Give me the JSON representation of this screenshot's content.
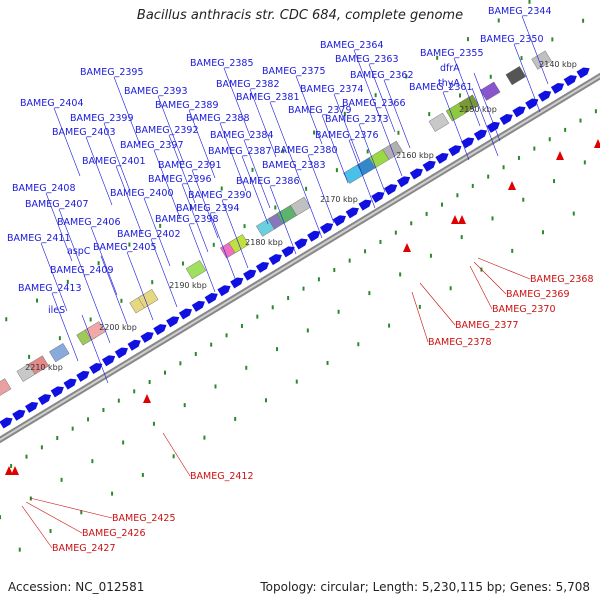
{
  "title": "Bacillus anthracis str. CDC 684, complete genome",
  "accession_text": "Accession: NC_012581",
  "summary_text": "Topology: circular; Length: 5,230,115 bp; Genes: 5,708",
  "colors": {
    "label_top": "#1a1adb",
    "label_bottom": "#cc1111",
    "arrow_forward": "#1010e0",
    "arrow_reverse": "#e00000",
    "tick": "#2a8a2a",
    "backbone": "#888888"
  },
  "scale_labels": [
    "2140 kbp",
    "2150 kbp",
    "2160 kbp",
    "2170 kbp",
    "2180 kbp",
    "2190 kbp",
    "2200 kbp",
    "2210 kbp"
  ],
  "top_labels": [
    "BAMEG_2344",
    "BAMEG_2350",
    "BAMEG_2355",
    "dfrA",
    "thyA",
    "BAMEG_2361",
    "BAMEG_2362",
    "BAMEG_2363",
    "BAMEG_2364",
    "BAMEG_2366",
    "BAMEG_2373",
    "BAMEG_2374",
    "BAMEG_2375",
    "BAMEG_2376",
    "BAMEG_2379",
    "BAMEG_2380",
    "BAMEG_2381",
    "BAMEG_2382",
    "BAMEG_2383",
    "BAMEG_2384",
    "BAMEG_2385",
    "BAMEG_2386",
    "BAMEG_2387",
    "BAMEG_2388",
    "BAMEG_2389",
    "BAMEG_2390",
    "BAMEG_2391",
    "BAMEG_2392",
    "BAMEG_2393",
    "BAMEG_2394",
    "BAMEG_2395",
    "BAMEG_2396",
    "BAMEG_2397",
    "BAMEG_2398",
    "BAMEG_2399",
    "BAMEG_2400",
    "BAMEG_2401",
    "BAMEG_2402",
    "BAMEG_2403",
    "BAMEG_2404",
    "BAMEG_2405",
    "BAMEG_2406",
    "BAMEG_2407",
    "BAMEG_2408",
    "aspC",
    "BAMEG_2409",
    "BAMEG_2411",
    "BAMEG_2413",
    "ileS"
  ],
  "bottom_labels": [
    "BAMEG_2368",
    "BAMEG_2369",
    "BAMEG_2370",
    "BAMEG_2377",
    "BAMEG_2378",
    "BAMEG_2412",
    "BAMEG_2425",
    "BAMEG_2426",
    "BAMEG_2427"
  ]
}
